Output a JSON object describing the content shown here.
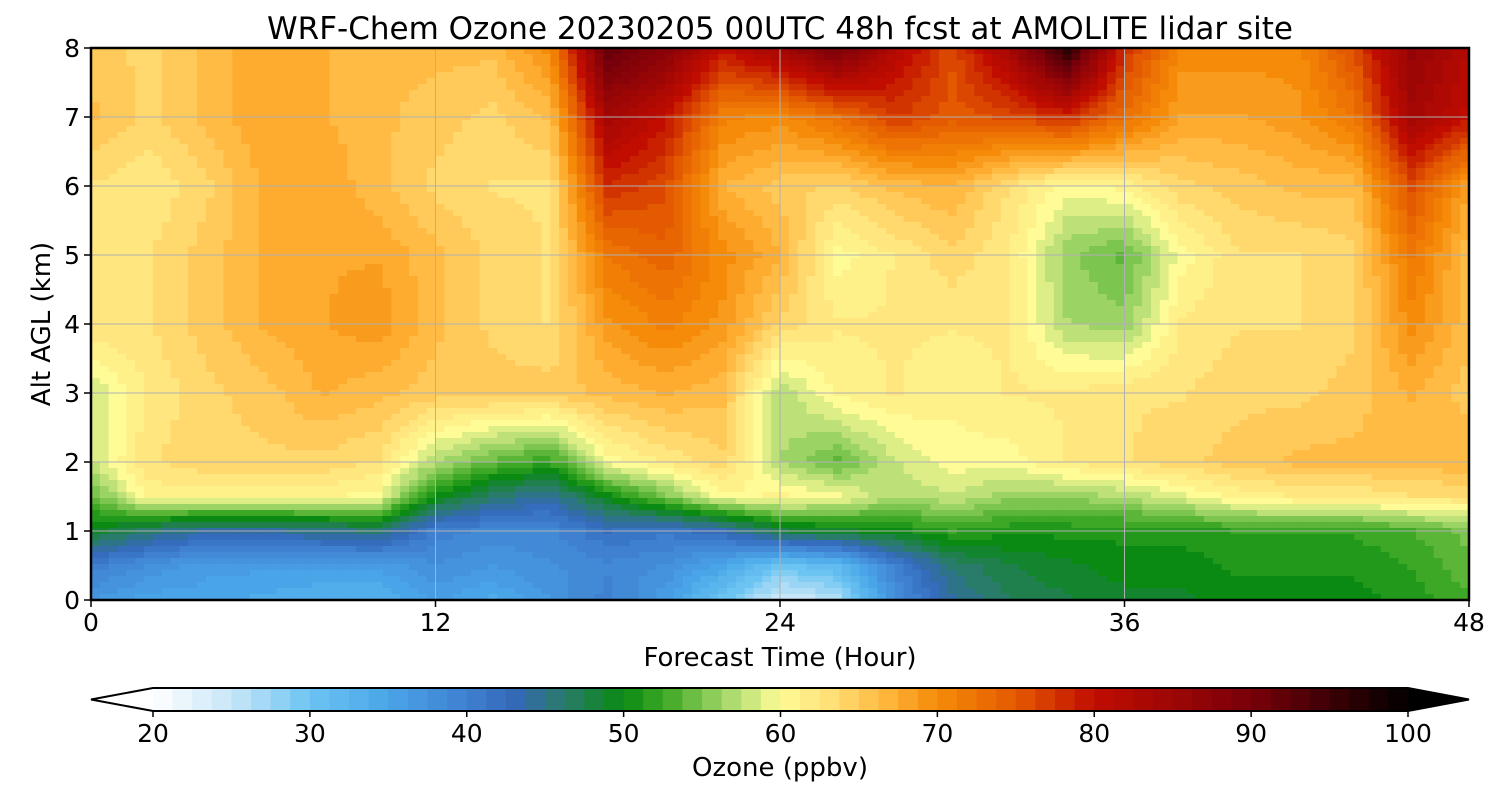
{
  "chart_data": {
    "type": "heatmap",
    "title": "WRF-Chem Ozone  20230205 00UTC 48h fcst at AMOLITE lidar site",
    "xlabel": "Forecast Time (Hour)",
    "ylabel": "Alt AGL (km)",
    "x_ticks": [
      0,
      12,
      24,
      36,
      48
    ],
    "y_ticks": [
      0,
      1,
      2,
      3,
      4,
      5,
      6,
      7,
      8
    ],
    "xlim": [
      0,
      48
    ],
    "ylim": [
      0,
      8
    ],
    "grid": true,
    "x": [
      0,
      2,
      4,
      6,
      8,
      10,
      12,
      14,
      16,
      18,
      20,
      22,
      24,
      26,
      28,
      30,
      32,
      34,
      36,
      38,
      40,
      42,
      44,
      46,
      48
    ],
    "y": [
      0,
      0.5,
      1,
      1.5,
      2,
      3,
      4,
      5,
      6,
      7,
      8
    ],
    "z": [
      [
        37,
        35,
        35,
        34,
        33,
        33,
        36,
        34,
        37,
        40,
        36,
        30,
        24,
        26,
        38,
        44,
        47,
        48,
        49,
        49,
        50,
        50,
        50,
        51,
        53
      ],
      [
        40,
        38,
        36,
        36,
        36,
        36,
        38,
        37,
        38,
        39,
        38,
        35,
        30,
        32,
        40,
        46,
        48,
        49,
        50,
        50,
        51,
        51,
        51,
        52,
        54
      ],
      [
        49,
        46,
        44,
        44,
        45,
        46,
        40,
        39,
        39,
        42,
        41,
        43,
        48,
        49,
        50,
        52,
        51,
        51,
        51,
        51,
        52,
        52,
        52,
        53,
        55
      ],
      [
        54,
        61,
        61,
        61,
        61,
        60,
        50,
        46,
        44,
        50,
        55,
        60,
        61,
        60,
        57,
        58,
        56,
        56,
        57,
        59,
        61,
        62,
        62,
        63,
        63
      ],
      [
        58,
        63,
        64,
        64,
        64,
        63,
        57,
        54,
        52,
        60,
        62,
        64,
        57,
        54,
        58,
        60,
        60,
        62,
        63,
        64,
        65,
        66,
        66,
        66,
        67
      ],
      [
        58,
        62,
        64,
        65,
        67,
        66,
        65,
        65,
        65,
        66,
        67,
        66,
        57,
        61,
        62,
        61,
        62,
        62,
        63,
        63,
        64,
        64,
        65,
        67,
        65
      ],
      [
        63,
        63,
        65,
        67,
        68,
        69,
        66,
        64,
        63,
        69,
        71,
        69,
        64,
        62,
        62,
        62,
        62,
        57,
        56,
        62,
        63,
        63,
        64,
        70,
        66
      ],
      [
        63,
        63,
        65,
        67,
        68,
        68,
        66,
        64,
        63,
        72,
        74,
        70,
        67,
        60,
        62,
        64,
        62,
        56,
        54,
        60,
        63,
        63,
        64,
        72,
        66
      ],
      [
        63,
        62,
        64,
        67,
        68,
        66,
        64,
        63,
        63,
        78,
        76,
        67,
        65,
        64,
        66,
        67,
        63,
        60,
        61,
        64,
        65,
        66,
        66,
        76,
        68
      ],
      [
        66,
        64,
        66,
        68,
        67,
        66,
        65,
        64,
        66,
        84,
        80,
        71,
        70,
        73,
        77,
        75,
        76,
        78,
        73,
        68,
        68,
        69,
        72,
        84,
        80
      ],
      [
        65,
        64,
        66,
        68,
        67,
        66,
        66,
        66,
        70,
        92,
        88,
        80,
        84,
        90,
        82,
        76,
        84,
        97,
        78,
        70,
        70,
        70,
        76,
        86,
        82
      ]
    ],
    "colorbar": {
      "label": "Ozone  (ppbv)",
      "ticks": [
        20,
        30,
        40,
        50,
        60,
        70,
        80,
        90,
        100
      ],
      "min": 20,
      "max": 100,
      "extend": "both",
      "stops": [
        {
          "v": 20,
          "c": "#ffffff"
        },
        {
          "v": 25,
          "c": "#c8e6f8"
        },
        {
          "v": 30,
          "c": "#6bc4f2"
        },
        {
          "v": 35,
          "c": "#4aa5e8"
        },
        {
          "v": 40,
          "c": "#3f80d0"
        },
        {
          "v": 43,
          "c": "#3468b8"
        },
        {
          "v": 46,
          "c": "#2b7a70"
        },
        {
          "v": 50,
          "c": "#0a8a12"
        },
        {
          "v": 53,
          "c": "#47ad2a"
        },
        {
          "v": 57,
          "c": "#b0dc72"
        },
        {
          "v": 60,
          "c": "#fffb96"
        },
        {
          "v": 63,
          "c": "#ffe27a"
        },
        {
          "v": 67,
          "c": "#ffb238"
        },
        {
          "v": 70,
          "c": "#f58b08"
        },
        {
          "v": 75,
          "c": "#e45a00"
        },
        {
          "v": 80,
          "c": "#c00d00"
        },
        {
          "v": 90,
          "c": "#78000a"
        },
        {
          "v": 100,
          "c": "#000000"
        }
      ]
    }
  }
}
